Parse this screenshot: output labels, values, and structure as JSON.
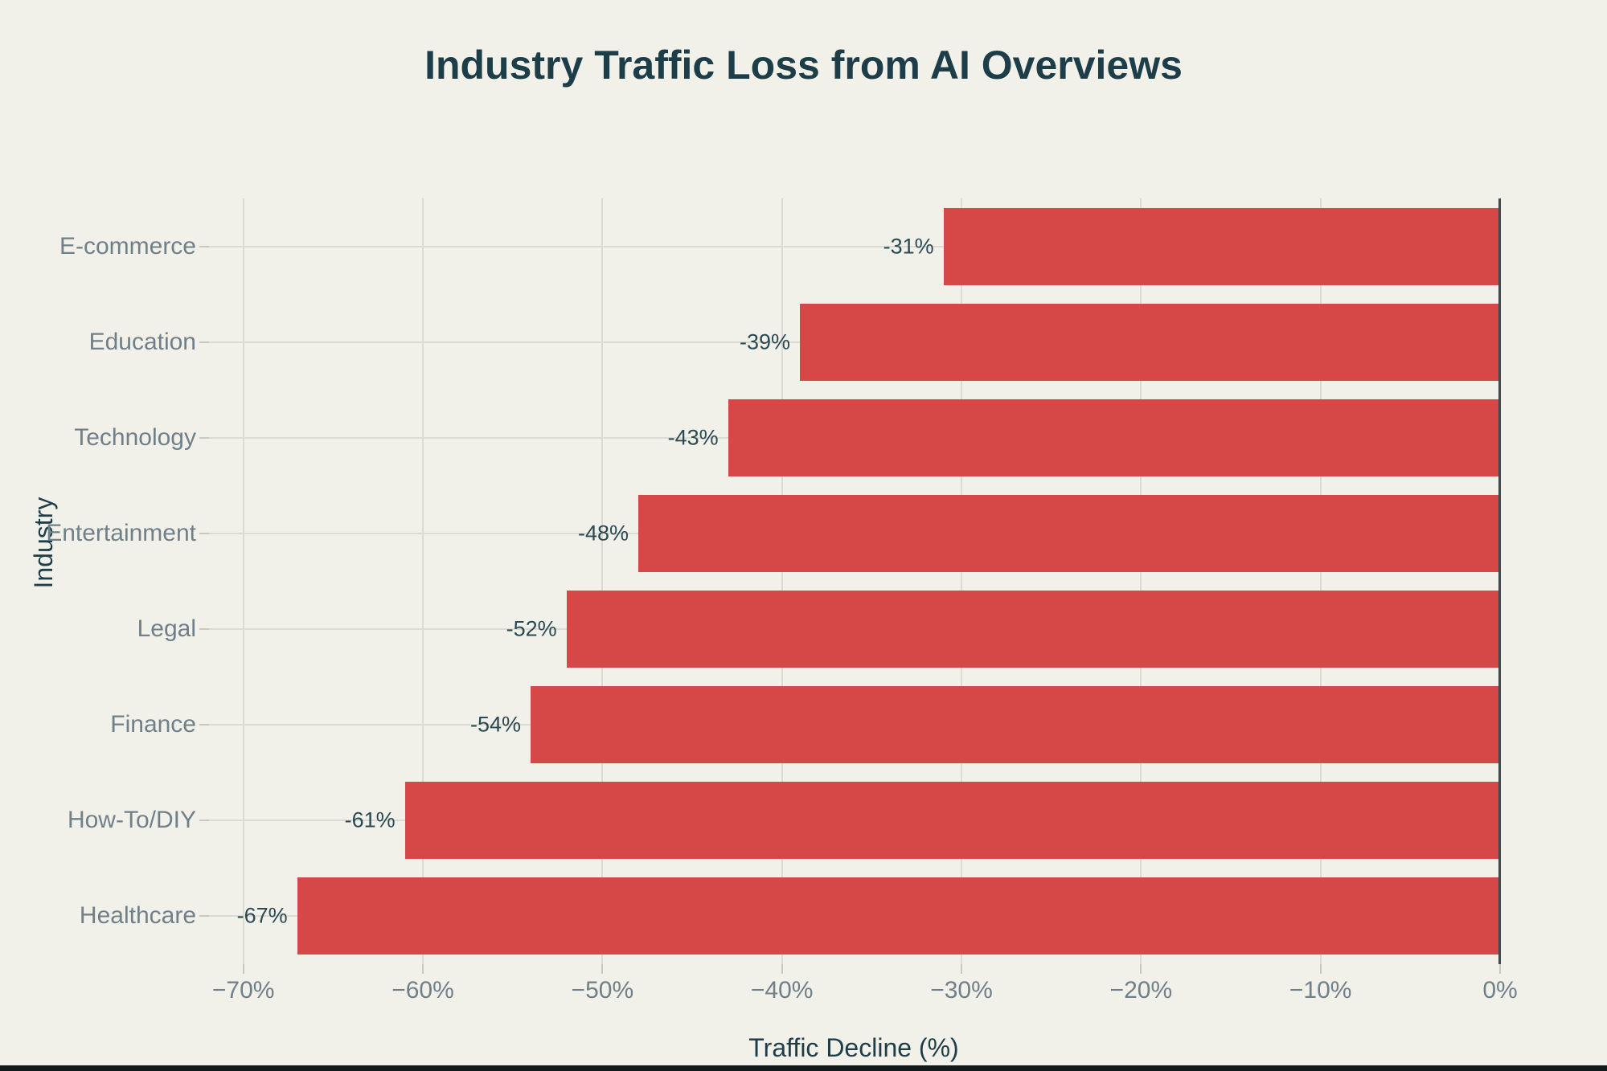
{
  "page": {
    "background_color": "#f1f1ea",
    "bottom_edge_color": "#131a1c"
  },
  "chart_data": {
    "type": "bar",
    "orientation": "horizontal",
    "title": "Industry Traffic Loss from AI Overviews",
    "xlabel": "Traffic Decline (%)",
    "ylabel": "Industry",
    "categories": [
      "E-commerce",
      "Education",
      "Technology",
      "Entertainment",
      "Legal",
      "Finance",
      "How-To/DIY",
      "Healthcare"
    ],
    "values": [
      -31,
      -39,
      -43,
      -48,
      -52,
      -54,
      -61,
      -67
    ],
    "bar_labels": [
      "-31%",
      "-39%",
      "-43%",
      "-48%",
      "-52%",
      "-54%",
      "-61%",
      "-67%"
    ],
    "x_ticks": [
      {
        "value": -70,
        "label": "−70%"
      },
      {
        "value": -60,
        "label": "−60%"
      },
      {
        "value": -50,
        "label": "−50%"
      },
      {
        "value": -40,
        "label": "−40%"
      },
      {
        "value": -30,
        "label": "−30%"
      },
      {
        "value": -20,
        "label": "−20%"
      },
      {
        "value": -10,
        "label": "−10%"
      },
      {
        "value": 0,
        "label": "0%"
      }
    ],
    "xlim": [
      -72,
      0
    ],
    "grid": true,
    "legend": false,
    "style": {
      "bar_color": "#d64848",
      "gridline_color": "#dcdbd3",
      "zero_axis_color": "#43484a",
      "title_color": "#1d3e49",
      "axis_title_color": "#1d3e49",
      "tick_label_color": "#70808a",
      "bar_value_label_color": "#2b4953"
    }
  }
}
